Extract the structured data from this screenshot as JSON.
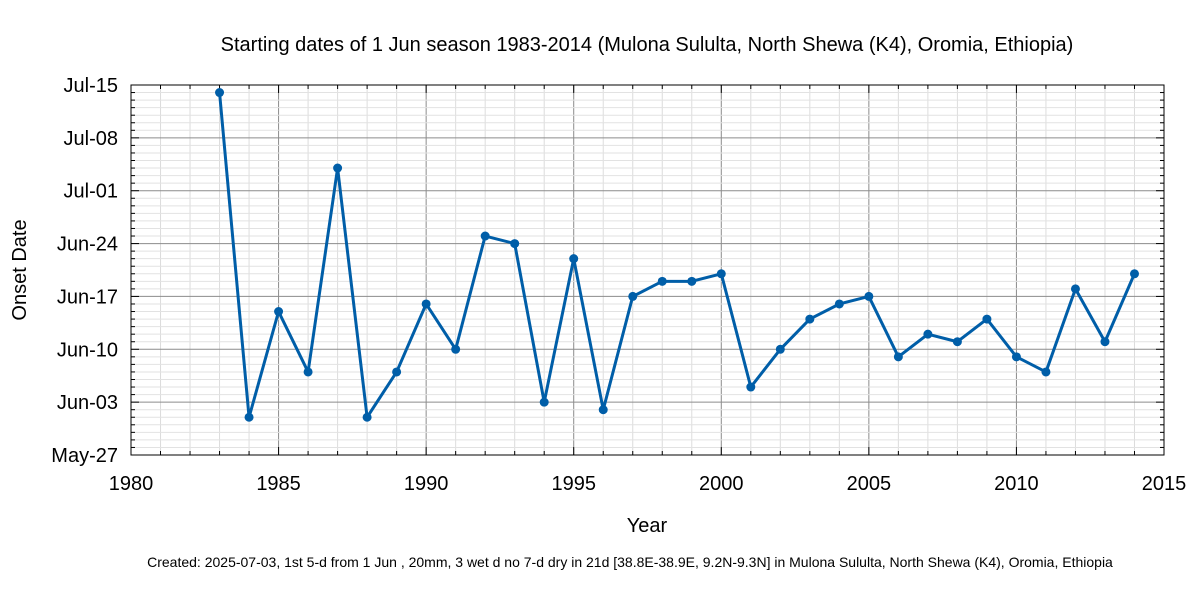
{
  "chart_data": {
    "type": "line",
    "title": "Starting dates of 1 Jun season 1983-2014 (Mulona Sululta, North Shewa (K4), Oromia, Ethiopia)",
    "xlabel": "Year",
    "ylabel": "Onset Date",
    "footer": "Created: 2025-07-03, 1st 5-d from 1 Jun , 20mm, 3 wet d no 7-d dry in 21d [38.8E-38.9E, 9.2N-9.3N] in Mulona Sululta, North Shewa (K4), Oromia, Ethiopia",
    "xlim": [
      1980,
      2015
    ],
    "ylim": [
      "May-27",
      "Jul-15"
    ],
    "x_ticks": [
      "1980",
      "1985",
      "1990",
      "1995",
      "2000",
      "2005",
      "2010",
      "2015"
    ],
    "y_ticks": [
      "May-27",
      "Jun-03",
      "Jun-10",
      "Jun-17",
      "Jun-24",
      "Jul-01",
      "Jul-08",
      "Jul-15"
    ],
    "grid": true,
    "series": [
      {
        "color": "#005ea8",
        "points": [
          {
            "x": 1983,
            "y": "Jul-14"
          },
          {
            "x": 1984,
            "y": "Jun-01"
          },
          {
            "x": 1985,
            "y": "Jun-15"
          },
          {
            "x": 1986,
            "y": "Jun-07"
          },
          {
            "x": 1987,
            "y": "Jul-04"
          },
          {
            "x": 1988,
            "y": "Jun-01"
          },
          {
            "x": 1989,
            "y": "Jun-07"
          },
          {
            "x": 1990,
            "y": "Jun-16"
          },
          {
            "x": 1991,
            "y": "Jun-10"
          },
          {
            "x": 1992,
            "y": "Jun-25"
          },
          {
            "x": 1993,
            "y": "Jun-24"
          },
          {
            "x": 1994,
            "y": "Jun-03"
          },
          {
            "x": 1995,
            "y": "Jun-22"
          },
          {
            "x": 1996,
            "y": "Jun-02"
          },
          {
            "x": 1997,
            "y": "Jun-17"
          },
          {
            "x": 1998,
            "y": "Jun-19"
          },
          {
            "x": 1999,
            "y": "Jun-19"
          },
          {
            "x": 2000,
            "y": "Jun-20"
          },
          {
            "x": 2001,
            "y": "Jun-05"
          },
          {
            "x": 2002,
            "y": "Jun-10"
          },
          {
            "x": 2003,
            "y": "Jun-14"
          },
          {
            "x": 2004,
            "y": "Jun-16"
          },
          {
            "x": 2005,
            "y": "Jun-17"
          },
          {
            "x": 2006,
            "y": "Jun-09"
          },
          {
            "x": 2007,
            "y": "Jun-12"
          },
          {
            "x": 2008,
            "y": "Jun-11"
          },
          {
            "x": 2009,
            "y": "Jun-14"
          },
          {
            "x": 2010,
            "y": "Jun-09"
          },
          {
            "x": 2011,
            "y": "Jun-07"
          },
          {
            "x": 2012,
            "y": "Jun-18"
          },
          {
            "x": 2013,
            "y": "Jun-11"
          },
          {
            "x": 2014,
            "y": "Jun-20"
          }
        ]
      }
    ]
  }
}
